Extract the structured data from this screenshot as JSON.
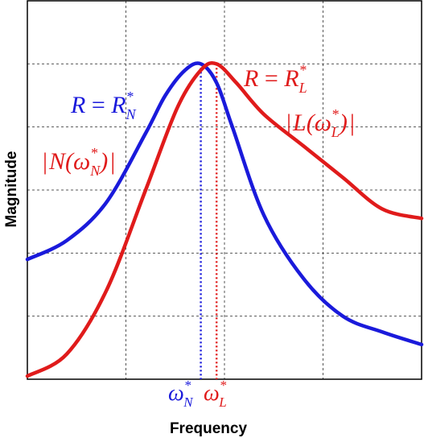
{
  "chart_data": {
    "type": "line",
    "title": "",
    "xlabel": "Frequency",
    "ylabel": "Magnitude",
    "xlim": [
      0,
      10
    ],
    "ylim": [
      0,
      6
    ],
    "grid": true,
    "series": [
      {
        "name": "",
        "color": "#1a1adb",
        "peak_x": 4.4,
        "peak_y": 5.0,
        "x": [
          0,
          1,
          2,
          3,
          3.5,
          4,
          4.4,
          4.8,
          5.2,
          6,
          7,
          8,
          9,
          10
        ],
        "y": [
          1.9,
          2.2,
          2.8,
          3.9,
          4.5,
          4.9,
          5.0,
          4.7,
          4.0,
          2.6,
          1.6,
          1.0,
          0.75,
          0.55
        ]
      },
      {
        "name": "",
        "color": "#e01b1b",
        "peak_x": 4.8,
        "peak_y": 5.0,
        "x": [
          0,
          1,
          2,
          3,
          3.8,
          4.4,
          4.8,
          5.3,
          6,
          7,
          8,
          9,
          10
        ],
        "y": [
          0.05,
          0.4,
          1.4,
          3.0,
          4.3,
          4.9,
          5.0,
          4.7,
          4.2,
          3.7,
          3.2,
          2.7,
          2.55
        ]
      }
    ],
    "annotations": {
      "blue_ratio": {
        "lhs": "R",
        "eq": " = ",
        "rhs": "R",
        "sup": "*",
        "sub": "N"
      },
      "red_ratio": {
        "lhs": "R",
        "eq": " = ",
        "rhs": "R",
        "sup": "*",
        "sub": "L"
      },
      "blue_peak": {
        "bar": "|",
        "fn": "N(",
        "w": "ω",
        "sup": "*",
        "sub": "N",
        "close": ")"
      },
      "red_peak": {
        "bar": "|",
        "fn": "L(",
        "w": "ω",
        "sup": "*",
        "sub": "L",
        "close": ")"
      },
      "blue_freq": {
        "w": "ω",
        "sup": "*",
        "sub": "N"
      },
      "red_freq": {
        "w": "ω",
        "sup": "*",
        "sub": "L"
      }
    }
  }
}
